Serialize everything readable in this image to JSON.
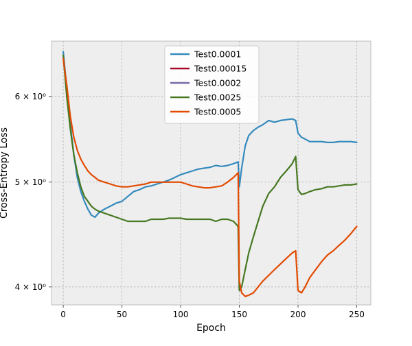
{
  "chart_data": {
    "type": "line",
    "title": "",
    "xlabel": "Epoch",
    "ylabel": "Cross-Entropy Loss",
    "xlim": [
      -10,
      262
    ],
    "ylim": [
      3.85,
      6.75
    ],
    "yscale": "log",
    "grid": true,
    "legend_position": "top-center",
    "x_ticks": [
      {
        "value": 0,
        "label": "0"
      },
      {
        "value": 50,
        "label": "50"
      },
      {
        "value": 100,
        "label": "100"
      },
      {
        "value": 150,
        "label": "150"
      },
      {
        "value": 200,
        "label": "200"
      },
      {
        "value": 250,
        "label": "250"
      }
    ],
    "y_ticks": [
      {
        "value": 4,
        "label": "4 × 10⁰"
      },
      {
        "value": 5,
        "label": "5 × 10⁰"
      },
      {
        "value": 6,
        "label": "6 × 10⁰"
      }
    ],
    "colors": {
      "background": "#eeeeee",
      "frame": "#bcbcbc"
    },
    "series": [
      {
        "name": "Test0.0001",
        "color": "#348abd",
        "points": [
          [
            0,
            6.6
          ],
          [
            3,
            6.1
          ],
          [
            6,
            5.65
          ],
          [
            9,
            5.3
          ],
          [
            12,
            5.05
          ],
          [
            15,
            4.9
          ],
          [
            18,
            4.8
          ],
          [
            21,
            4.72
          ],
          [
            24,
            4.66
          ],
          [
            27,
            4.64
          ],
          [
            30,
            4.68
          ],
          [
            35,
            4.72
          ],
          [
            40,
            4.75
          ],
          [
            45,
            4.78
          ],
          [
            50,
            4.8
          ],
          [
            55,
            4.85
          ],
          [
            60,
            4.9
          ],
          [
            65,
            4.92
          ],
          [
            70,
            4.95
          ],
          [
            75,
            4.96
          ],
          [
            80,
            4.98
          ],
          [
            85,
            5.0
          ],
          [
            90,
            5.02
          ],
          [
            95,
            5.05
          ],
          [
            100,
            5.08
          ],
          [
            105,
            5.1
          ],
          [
            110,
            5.12
          ],
          [
            115,
            5.14
          ],
          [
            120,
            5.15
          ],
          [
            125,
            5.16
          ],
          [
            130,
            5.18
          ],
          [
            135,
            5.17
          ],
          [
            140,
            5.18
          ],
          [
            145,
            5.2
          ],
          [
            149,
            5.22
          ],
          [
            150,
            4.95
          ],
          [
            152,
            5.15
          ],
          [
            155,
            5.4
          ],
          [
            158,
            5.52
          ],
          [
            162,
            5.58
          ],
          [
            166,
            5.62
          ],
          [
            170,
            5.65
          ],
          [
            175,
            5.7
          ],
          [
            180,
            5.68
          ],
          [
            185,
            5.7
          ],
          [
            190,
            5.71
          ],
          [
            195,
            5.72
          ],
          [
            198,
            5.7
          ],
          [
            200,
            5.55
          ],
          [
            203,
            5.5
          ],
          [
            206,
            5.48
          ],
          [
            210,
            5.45
          ],
          [
            215,
            5.45
          ],
          [
            220,
            5.45
          ],
          [
            225,
            5.44
          ],
          [
            230,
            5.44
          ],
          [
            235,
            5.45
          ],
          [
            240,
            5.45
          ],
          [
            245,
            5.45
          ],
          [
            250,
            5.44
          ]
        ]
      },
      {
        "name": "Test0.00015",
        "color": "#a60628",
        "points": []
      },
      {
        "name": "Test0.0002",
        "color": "#7a68a6",
        "points": []
      },
      {
        "name": "Test0.0025",
        "color": "#467821",
        "points": [
          [
            0,
            6.55
          ],
          [
            3,
            6.0
          ],
          [
            6,
            5.6
          ],
          [
            9,
            5.3
          ],
          [
            12,
            5.1
          ],
          [
            15,
            4.95
          ],
          [
            18,
            4.85
          ],
          [
            21,
            4.8
          ],
          [
            24,
            4.75
          ],
          [
            27,
            4.72
          ],
          [
            30,
            4.7
          ],
          [
            35,
            4.68
          ],
          [
            40,
            4.66
          ],
          [
            45,
            4.64
          ],
          [
            50,
            4.62
          ],
          [
            55,
            4.6
          ],
          [
            60,
            4.6
          ],
          [
            65,
            4.6
          ],
          [
            70,
            4.6
          ],
          [
            75,
            4.62
          ],
          [
            80,
            4.62
          ],
          [
            85,
            4.62
          ],
          [
            90,
            4.63
          ],
          [
            95,
            4.63
          ],
          [
            100,
            4.63
          ],
          [
            105,
            4.62
          ],
          [
            110,
            4.62
          ],
          [
            115,
            4.62
          ],
          [
            120,
            4.62
          ],
          [
            125,
            4.62
          ],
          [
            130,
            4.6
          ],
          [
            135,
            4.62
          ],
          [
            140,
            4.62
          ],
          [
            145,
            4.6
          ],
          [
            149,
            4.55
          ],
          [
            150,
            3.97
          ],
          [
            152,
            4.0
          ],
          [
            155,
            4.15
          ],
          [
            158,
            4.3
          ],
          [
            162,
            4.45
          ],
          [
            166,
            4.6
          ],
          [
            170,
            4.75
          ],
          [
            175,
            4.88
          ],
          [
            180,
            4.95
          ],
          [
            185,
            5.05
          ],
          [
            190,
            5.12
          ],
          [
            195,
            5.2
          ],
          [
            198,
            5.28
          ],
          [
            200,
            4.92
          ],
          [
            203,
            4.87
          ],
          [
            206,
            4.88
          ],
          [
            210,
            4.9
          ],
          [
            215,
            4.92
          ],
          [
            220,
            4.93
          ],
          [
            225,
            4.95
          ],
          [
            230,
            4.95
          ],
          [
            235,
            4.96
          ],
          [
            240,
            4.97
          ],
          [
            245,
            4.97
          ],
          [
            250,
            4.98
          ]
        ]
      },
      {
        "name": "Test0.0005",
        "color": "#e24a00",
        "points": [
          [
            0,
            6.5
          ],
          [
            3,
            6.15
          ],
          [
            6,
            5.75
          ],
          [
            9,
            5.5
          ],
          [
            12,
            5.35
          ],
          [
            15,
            5.25
          ],
          [
            18,
            5.18
          ],
          [
            21,
            5.12
          ],
          [
            24,
            5.08
          ],
          [
            27,
            5.05
          ],
          [
            30,
            5.02
          ],
          [
            35,
            5.0
          ],
          [
            40,
            4.98
          ],
          [
            45,
            4.96
          ],
          [
            50,
            4.95
          ],
          [
            55,
            4.95
          ],
          [
            60,
            4.96
          ],
          [
            65,
            4.97
          ],
          [
            70,
            4.98
          ],
          [
            75,
            5.0
          ],
          [
            80,
            5.0
          ],
          [
            85,
            5.0
          ],
          [
            90,
            5.0
          ],
          [
            95,
            5.0
          ],
          [
            100,
            5.0
          ],
          [
            105,
            4.98
          ],
          [
            110,
            4.96
          ],
          [
            115,
            4.95
          ],
          [
            120,
            4.94
          ],
          [
            125,
            4.94
          ],
          [
            130,
            4.95
          ],
          [
            135,
            4.96
          ],
          [
            140,
            5.0
          ],
          [
            145,
            5.05
          ],
          [
            149,
            5.1
          ],
          [
            150,
            4.05
          ],
          [
            152,
            3.95
          ],
          [
            155,
            3.92
          ],
          [
            158,
            3.93
          ],
          [
            162,
            3.95
          ],
          [
            166,
            4.0
          ],
          [
            170,
            4.05
          ],
          [
            175,
            4.1
          ],
          [
            180,
            4.15
          ],
          [
            185,
            4.2
          ],
          [
            190,
            4.25
          ],
          [
            195,
            4.3
          ],
          [
            198,
            4.32
          ],
          [
            200,
            3.97
          ],
          [
            203,
            3.95
          ],
          [
            206,
            4.0
          ],
          [
            210,
            4.08
          ],
          [
            215,
            4.15
          ],
          [
            220,
            4.22
          ],
          [
            225,
            4.28
          ],
          [
            230,
            4.32
          ],
          [
            235,
            4.37
          ],
          [
            240,
            4.42
          ],
          [
            245,
            4.48
          ],
          [
            250,
            4.55
          ]
        ]
      }
    ]
  }
}
